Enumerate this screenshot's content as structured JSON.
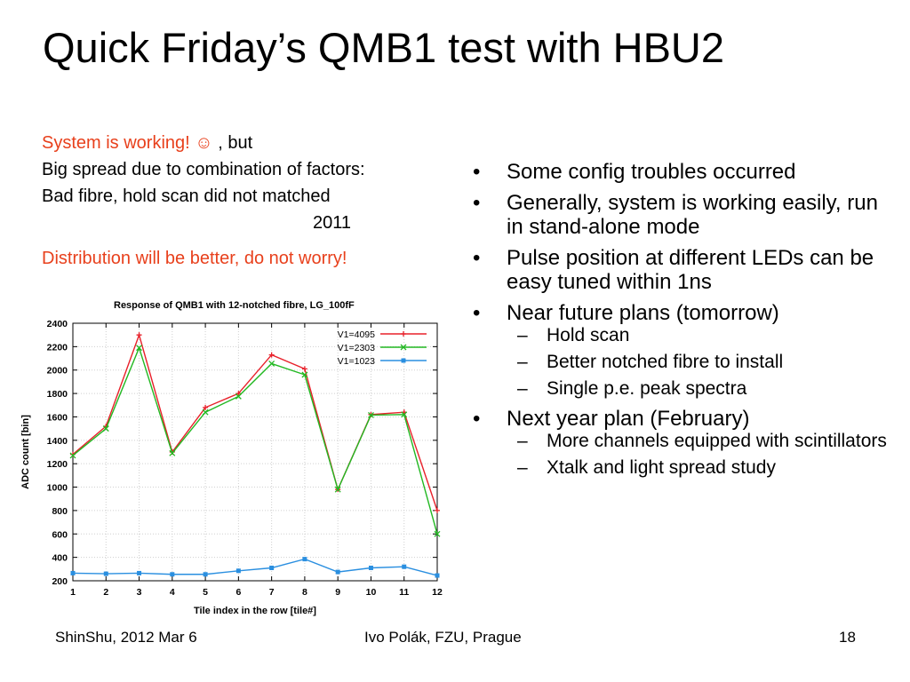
{
  "title": "Quick Friday’s QMB1 test with HBU2",
  "left": {
    "line1_red": "System is working! ☺",
    "line1_rest": " , but",
    "line2": "Big spread due to combination of factors: Bad fibre, hold scan did not matched",
    "year": "2011",
    "para2": "Distribution will be better, do not worry!"
  },
  "bullets": [
    {
      "text": "Some config troubles occurred",
      "subs": []
    },
    {
      "text": "Generally, system is working easily, run in stand-alone mode",
      "subs": []
    },
    {
      "text": "Pulse position at different LEDs can be easy tuned within 1ns",
      "subs": []
    },
    {
      "text": "Near future plans (tomorrow)",
      "subs": [
        "Hold scan",
        "Better notched fibre to install",
        "Single p.e. peak spectra"
      ]
    },
    {
      "text": "Next year plan (February)",
      "subs": [
        "More channels equipped with scintillators",
        "Xtalk and light spread study"
      ]
    }
  ],
  "footer": {
    "left": "ShinShu, 2012  Mar 6",
    "center": "Ivo Polák, FZU, Prague",
    "right": "18"
  },
  "chart_data": {
    "type": "line",
    "title": "Response of QMB1 with 12-notched fibre, LG_100fF",
    "xlabel": "Tile index in the row [tile#]",
    "ylabel": "ADC count [bin]",
    "x": [
      1,
      2,
      3,
      4,
      5,
      6,
      7,
      8,
      9,
      10,
      11,
      12
    ],
    "xlim": [
      1,
      12
    ],
    "ylim": [
      200,
      2400
    ],
    "yticks": [
      200,
      400,
      600,
      800,
      1000,
      1200,
      1400,
      1600,
      1800,
      2000,
      2200,
      2400
    ],
    "grid": true,
    "legend": "top-right",
    "series": [
      {
        "name": "V1=4095",
        "color": "#e8202a",
        "marker": "plus",
        "values": [
          1280,
          1520,
          2300,
          1300,
          1680,
          1800,
          2130,
          2010,
          980,
          1620,
          1640,
          800
        ]
      },
      {
        "name": "V1=2303",
        "color": "#22b822",
        "marker": "cross",
        "values": [
          1270,
          1500,
          2190,
          1290,
          1640,
          1775,
          2055,
          1960,
          980,
          1615,
          1620,
          600
        ]
      },
      {
        "name": "V1=1023",
        "color": "#2a8fe0",
        "marker": "square",
        "values": [
          265,
          260,
          265,
          255,
          255,
          285,
          310,
          385,
          275,
          310,
          320,
          245
        ]
      }
    ]
  }
}
